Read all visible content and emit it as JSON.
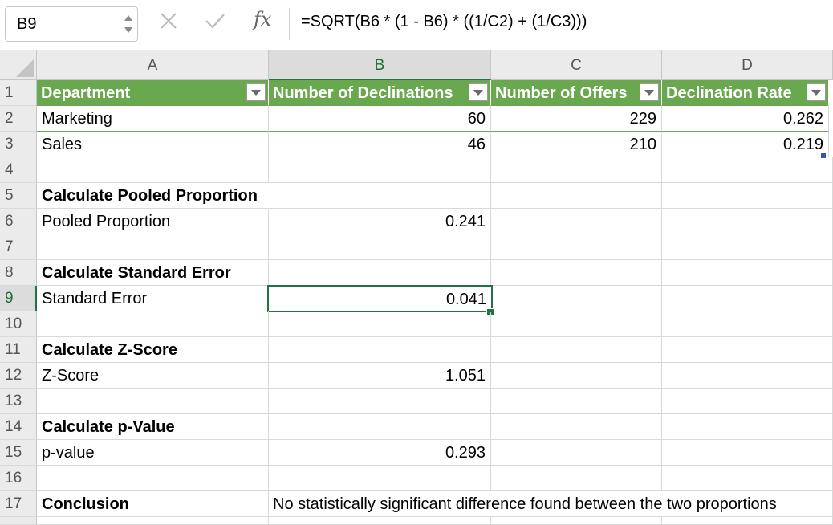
{
  "formula_bar": {
    "name_box": "B9",
    "fx_label": "fx",
    "formula": "=SQRT(B6 * (1 - B6) * ((1/C2) + (1/C3)))"
  },
  "columns": [
    "A",
    "B",
    "C",
    "D"
  ],
  "rows": [
    "1",
    "2",
    "3",
    "4",
    "5",
    "6",
    "7",
    "8",
    "9",
    "10",
    "11",
    "12",
    "13",
    "14",
    "15",
    "16",
    "17"
  ],
  "table": {
    "headers": [
      "Department",
      "Number of Declinations",
      "Number of Offers",
      "Declination Rate"
    ],
    "rows": [
      [
        "Marketing",
        "60",
        "229",
        "0.262"
      ],
      [
        "Sales",
        "46",
        "210",
        "0.219"
      ]
    ]
  },
  "sections": {
    "pooled_title": "Calculate Pooled Proportion",
    "pooled_label": "Pooled Proportion",
    "pooled_value": "0.241",
    "se_title": "Calculate Standard Error",
    "se_label": "Standard Error",
    "se_value": "0.041",
    "z_title": "Calculate Z-Score",
    "z_label": "Z-Score",
    "z_value": "1.051",
    "p_title": "Calculate p-Value",
    "p_label": "p-value",
    "p_value": "0.293",
    "conclusion_label": "Conclusion",
    "conclusion_text": "No statistically significant difference found between the two proportions"
  },
  "colors": {
    "header_fill": "#6aa84f",
    "selection": "#217346"
  },
  "icons": [
    "stepper-icon",
    "cancel-icon",
    "enter-icon",
    "fx-icon",
    "filter-dropdown-icon"
  ]
}
